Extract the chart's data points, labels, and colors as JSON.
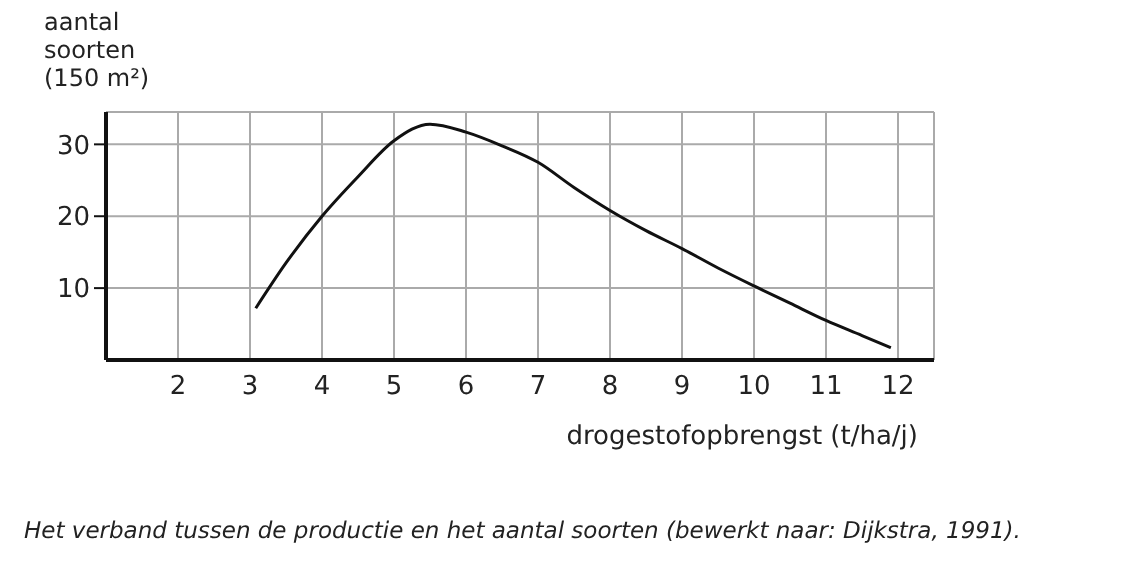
{
  "chart_data": {
    "type": "line",
    "ylabel": "aantal soorten (150 m²)",
    "xlabel": "drogestofopbrengst (t/ha/j)",
    "annotations": [
      "Het verband tussen de productie en het aantal soorten (bewerkt naar: Dijkstra, 1991)."
    ],
    "x": [
      3.08,
      3.5,
      4,
      4.5,
      5,
      5.5,
      6,
      6.5,
      7,
      7.5,
      8,
      8.5,
      9,
      9.5,
      10,
      10.5,
      11,
      11.5,
      11.9
    ],
    "series": [
      {
        "color": "#111111",
        "values": [
          7.2,
          13.5,
          20,
          25.5,
          30.5,
          32.8,
          31.7,
          29.8,
          27.5,
          24,
          20.8,
          18,
          15.5,
          12.8,
          10.3,
          7.9,
          5.5,
          3.4,
          1.7
        ]
      }
    ],
    "xlim": [
      1,
      12.5
    ],
    "xticks": [
      2,
      3,
      4,
      5,
      6,
      7,
      8,
      9,
      10,
      11,
      12
    ],
    "ylim": [
      0,
      34.5
    ],
    "yticks": [
      10,
      20,
      30
    ],
    "grid": true,
    "marker": "none",
    "line_style": "solid"
  }
}
